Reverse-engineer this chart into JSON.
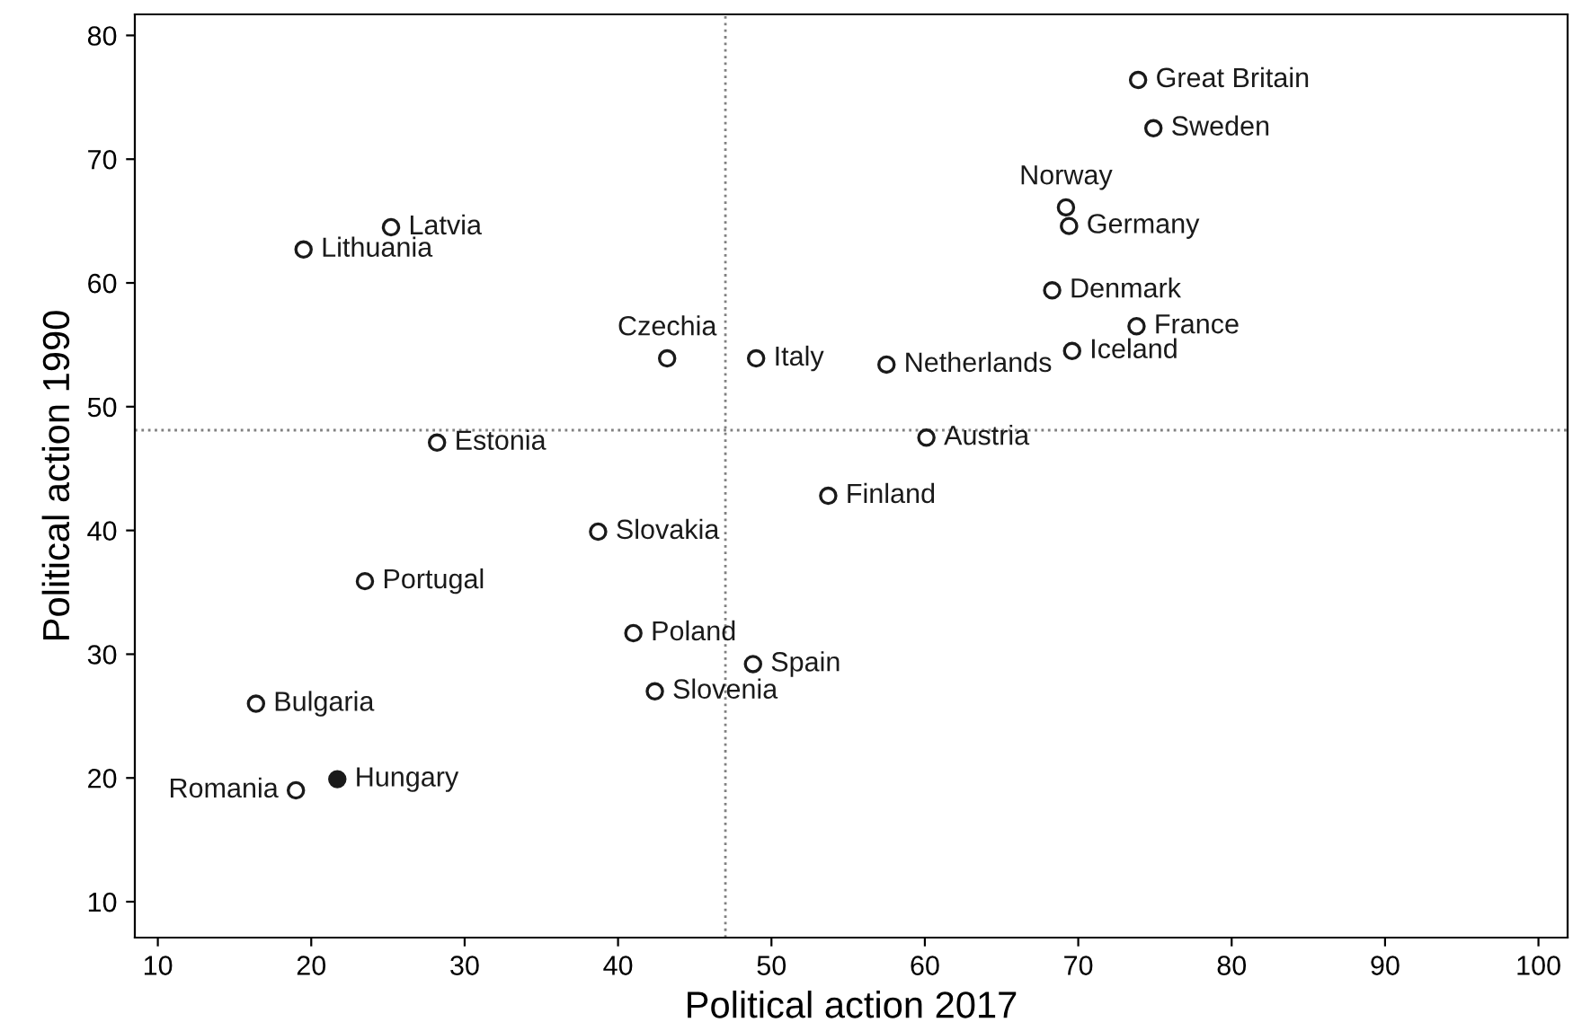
{
  "chart_data": {
    "type": "scatter",
    "xlabel": "Political action 2017",
    "ylabel": "Political action 1990",
    "x": [
      73.9,
      74.9,
      69.2,
      69.4,
      68.3,
      73.8,
      69.6,
      57.5,
      49.0,
      43.2,
      25.2,
      19.5,
      28.2,
      60.1,
      53.7,
      38.7,
      23.5,
      41.0,
      48.8,
      42.4,
      16.4,
      19.0,
      21.7
    ],
    "values": [
      76.4,
      72.5,
      66.1,
      64.6,
      59.4,
      56.5,
      54.5,
      53.4,
      53.9,
      53.9,
      64.5,
      62.7,
      47.1,
      47.5,
      42.8,
      39.9,
      35.9,
      31.7,
      29.2,
      27.0,
      26.0,
      19.0,
      19.9
    ],
    "colors": [
      "#ffffff",
      "#ffffff",
      "#ffffff",
      "#ffffff",
      "#ffffff",
      "#ffffff",
      "#ffffff",
      "#ffffff",
      "#ffffff",
      "#ffffff",
      "#ffffff",
      "#ffffff",
      "#ffffff",
      "#ffffff",
      "#ffffff",
      "#ffffff",
      "#ffffff",
      "#ffffff",
      "#ffffff",
      "#ffffff",
      "#ffffff",
      "#ffffff",
      "#1a1a1a"
    ],
    "marker": "circle",
    "annotations": [
      {
        "text": "Great Britain",
        "x": 73.9,
        "y": 76.4
      },
      {
        "text": "Sweden",
        "x": 74.9,
        "y": 72.5
      },
      {
        "text": "Norway",
        "x": 69.2,
        "y": 66.1
      },
      {
        "text": "Germany",
        "x": 69.4,
        "y": 64.6
      },
      {
        "text": "Denmark",
        "x": 68.3,
        "y": 59.4
      },
      {
        "text": "France",
        "x": 73.8,
        "y": 56.5
      },
      {
        "text": "Iceland",
        "x": 69.6,
        "y": 54.5
      },
      {
        "text": "Netherlands",
        "x": 57.5,
        "y": 53.4
      },
      {
        "text": "Italy",
        "x": 49.0,
        "y": 53.9
      },
      {
        "text": "Czechia",
        "x": 43.2,
        "y": 53.9
      },
      {
        "text": "Latvia",
        "x": 25.2,
        "y": 64.5
      },
      {
        "text": "Lithuania",
        "x": 19.5,
        "y": 62.7
      },
      {
        "text": "Estonia",
        "x": 28.2,
        "y": 47.1
      },
      {
        "text": "Austria",
        "x": 60.1,
        "y": 47.5
      },
      {
        "text": "Finland",
        "x": 53.7,
        "y": 42.8
      },
      {
        "text": "Slovakia",
        "x": 38.7,
        "y": 39.9
      },
      {
        "text": "Portugal",
        "x": 23.5,
        "y": 35.9
      },
      {
        "text": "Poland",
        "x": 41.0,
        "y": 31.7
      },
      {
        "text": "Spain",
        "x": 48.8,
        "y": 29.2
      },
      {
        "text": "Slovenia",
        "x": 42.4,
        "y": 27.0
      },
      {
        "text": "Bulgaria",
        "x": 16.4,
        "y": 26.0
      },
      {
        "text": "Romania",
        "x": 19.0,
        "y": 19.0
      },
      {
        "text": "Hungary",
        "x": 21.7,
        "y": 19.9
      }
    ],
    "ref_lines": [
      {
        "axis": "x",
        "value": 47.0,
        "color": "#808080",
        "line_style": "dotted"
      },
      {
        "axis": "y",
        "value": 48.1,
        "color": "#808080",
        "line_style": "dotted"
      }
    ],
    "xlim": [
      8.5,
      101.9
    ],
    "ylim": [
      7.1,
      81.7
    ],
    "xticks": [
      10,
      20,
      30,
      40,
      50,
      60,
      70,
      80,
      90,
      100
    ],
    "yticks": [
      10,
      20,
      30,
      40,
      50,
      60,
      70,
      80
    ],
    "grid": false
  }
}
